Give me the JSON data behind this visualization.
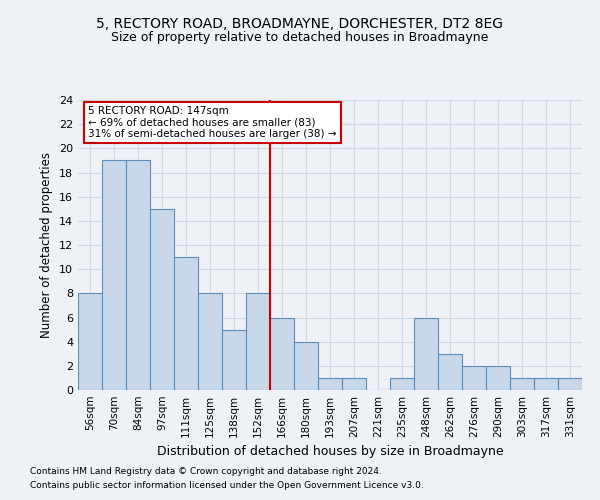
{
  "title1": "5, RECTORY ROAD, BROADMAYNE, DORCHESTER, DT2 8EG",
  "title2": "Size of property relative to detached houses in Broadmayne",
  "xlabel": "Distribution of detached houses by size in Broadmayne",
  "ylabel": "Number of detached properties",
  "categories": [
    "56sqm",
    "70sqm",
    "84sqm",
    "97sqm",
    "111sqm",
    "125sqm",
    "138sqm",
    "152sqm",
    "166sqm",
    "180sqm",
    "193sqm",
    "207sqm",
    "221sqm",
    "235sqm",
    "248sqm",
    "262sqm",
    "276sqm",
    "290sqm",
    "303sqm",
    "317sqm",
    "331sqm"
  ],
  "values": [
    8,
    19,
    19,
    15,
    11,
    8,
    5,
    8,
    6,
    4,
    1,
    1,
    0,
    1,
    6,
    3,
    2,
    2,
    1,
    1,
    1
  ],
  "bar_color": "#c8d8e8",
  "bar_edge_color": "#5b8db8",
  "vline_x": 7.5,
  "vline_color": "#cc0000",
  "annotation_text": "5 RECTORY ROAD: 147sqm\n← 69% of detached houses are smaller (83)\n31% of semi-detached houses are larger (38) →",
  "annotation_box_color": "#ffffff",
  "annotation_box_edge_color": "#cc0000",
  "ylim": [
    0,
    24
  ],
  "yticks": [
    0,
    2,
    4,
    6,
    8,
    10,
    12,
    14,
    16,
    18,
    20,
    22,
    24
  ],
  "grid_color": "#d0d8e4",
  "bg_color": "#eef2f7",
  "footnote1": "Contains HM Land Registry data © Crown copyright and database right 2024.",
  "footnote2": "Contains public sector information licensed under the Open Government Licence v3.0."
}
